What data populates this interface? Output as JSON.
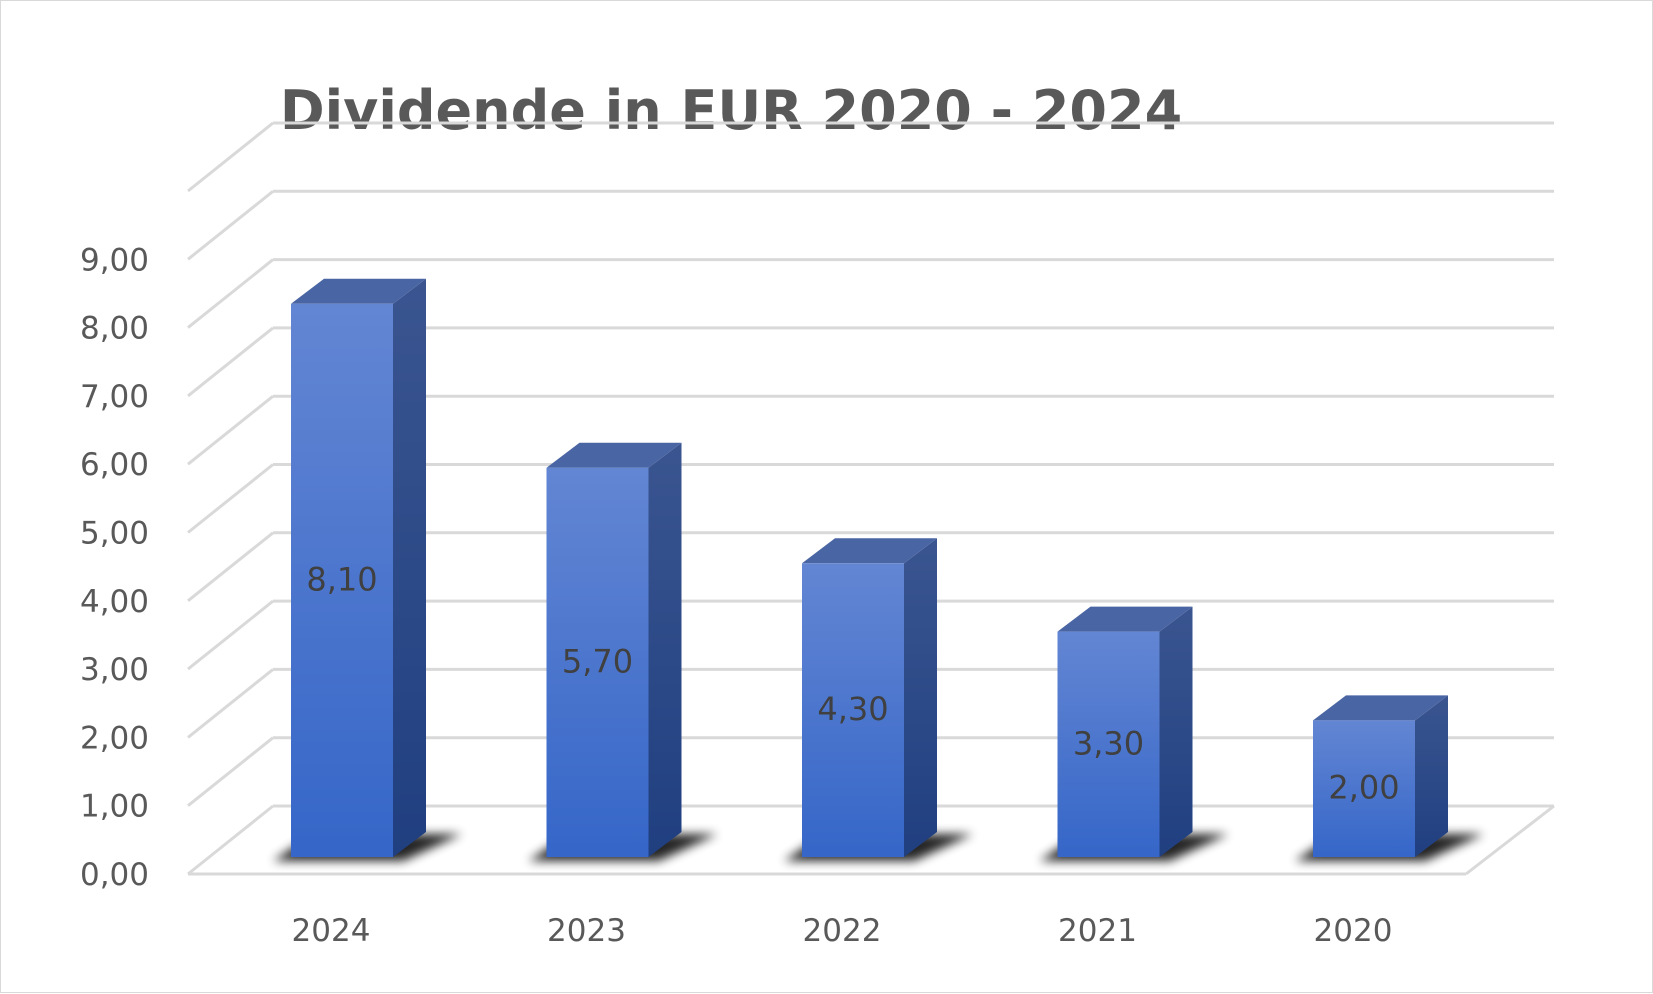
{
  "chart_data": {
    "type": "bar",
    "style": "3d-column",
    "title": "Dividende in EUR 2020 - 2024",
    "xlabel": "",
    "ylabel": "",
    "categories": [
      "2024",
      "2023",
      "2022",
      "2021",
      "2020"
    ],
    "values": [
      8.1,
      5.7,
      4.3,
      3.3,
      2.0
    ],
    "data_labels": [
      "8,10",
      "5,70",
      "4,30",
      "3,30",
      "2,00"
    ],
    "ylim": [
      0,
      9
    ],
    "y_ticks": [
      "0,00",
      "1,00",
      "2,00",
      "3,00",
      "4,00",
      "5,00",
      "6,00",
      "7,00",
      "8,00",
      "9,00"
    ],
    "grid": true,
    "legend": "none",
    "colors": {
      "bar_front_top": "#6386d3",
      "bar_front_bottom": "#3566c8",
      "bar_side": "#2a4a8f",
      "bar_top": "#4a65a3",
      "grid": "#d9d9d9",
      "text": "#595959"
    }
  }
}
